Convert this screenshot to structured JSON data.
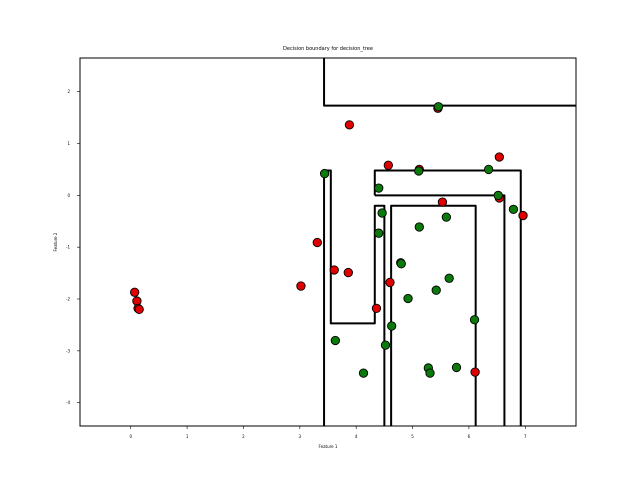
{
  "chart_data": {
    "type": "scatter",
    "title": "Decision boundary for decision_tree",
    "xlabel": "Feature 1",
    "ylabel": "Feature 2",
    "xlim": [
      -0.9,
      7.9
    ],
    "ylim": [
      -4.45,
      2.65
    ],
    "x_ticks": [
      0,
      1,
      2,
      3,
      4,
      5,
      6,
      7
    ],
    "y_ticks": [
      2,
      1,
      0,
      -1,
      -2,
      -3,
      -4
    ],
    "x_tick_labels": [
      "0",
      "1",
      "2",
      "3",
      "4",
      "5",
      "6",
      "7"
    ],
    "y_tick_labels": [
      "2",
      "1",
      "0",
      "-1",
      "-2",
      "-3",
      "-4"
    ],
    "grid": false,
    "series": [
      {
        "color": "#e00000",
        "points": [
          [
            0.07,
            -1.87
          ],
          [
            0.11,
            -2.04
          ],
          [
            0.13,
            -2.18
          ],
          [
            0.15,
            -2.2
          ],
          [
            3.02,
            -1.75
          ],
          [
            3.31,
            -0.91
          ],
          [
            3.61,
            -1.44
          ],
          [
            3.86,
            -1.49
          ],
          [
            3.88,
            1.36
          ],
          [
            4.36,
            -2.18
          ],
          [
            4.57,
            0.58
          ],
          [
            4.6,
            -1.68
          ],
          [
            5.12,
            0.5
          ],
          [
            5.45,
            1.68
          ],
          [
            5.53,
            -0.13
          ],
          [
            6.11,
            -3.41
          ],
          [
            6.54,
            0.74
          ],
          [
            6.54,
            -0.05
          ],
          [
            6.96,
            -0.39
          ]
        ]
      },
      {
        "color": "#0a7a0a",
        "points": [
          [
            3.44,
            0.42
          ],
          [
            3.63,
            -2.8
          ],
          [
            4.13,
            -3.43
          ],
          [
            4.4,
            0.14
          ],
          [
            4.4,
            -0.73
          ],
          [
            4.46,
            -0.34
          ],
          [
            4.52,
            -2.89
          ],
          [
            4.63,
            -2.52
          ],
          [
            4.79,
            -1.3
          ],
          [
            4.8,
            -1.32
          ],
          [
            4.92,
            -1.99
          ],
          [
            5.11,
            0.47
          ],
          [
            5.12,
            -0.61
          ],
          [
            5.28,
            -3.33
          ],
          [
            5.31,
            -3.43
          ],
          [
            5.42,
            -1.83
          ],
          [
            5.46,
            1.71
          ],
          [
            5.6,
            -0.42
          ],
          [
            5.65,
            -1.6
          ],
          [
            5.78,
            -3.32
          ],
          [
            6.1,
            -2.4
          ],
          [
            6.35,
            0.5
          ],
          [
            6.52,
            0.0
          ],
          [
            6.79,
            -0.27
          ]
        ]
      }
    ],
    "boundary": [
      [
        [
          3.43,
          2.65
        ],
        [
          3.43,
          1.73
        ],
        [
          7.9,
          1.73
        ]
      ],
      [
        [
          3.43,
          -4.45
        ],
        [
          3.43,
          0.48
        ],
        [
          3.55,
          0.48
        ],
        [
          3.55,
          -2.47
        ],
        [
          4.33,
          -2.47
        ],
        [
          4.33,
          -0.2
        ],
        [
          4.5,
          -0.2
        ],
        [
          4.5,
          -4.45
        ]
      ],
      [
        [
          4.62,
          -4.45
        ],
        [
          4.62,
          -0.2
        ],
        [
          6.12,
          -0.2
        ],
        [
          6.12,
          -4.45
        ]
      ],
      [
        [
          4.33,
          0.0
        ],
        [
          6.63,
          0.0
        ],
        [
          6.63,
          -4.45
        ]
      ],
      [
        [
          4.33,
          0.0
        ],
        [
          4.33,
          0.48
        ],
        [
          6.92,
          0.48
        ],
        [
          6.92,
          -4.45
        ]
      ]
    ]
  }
}
